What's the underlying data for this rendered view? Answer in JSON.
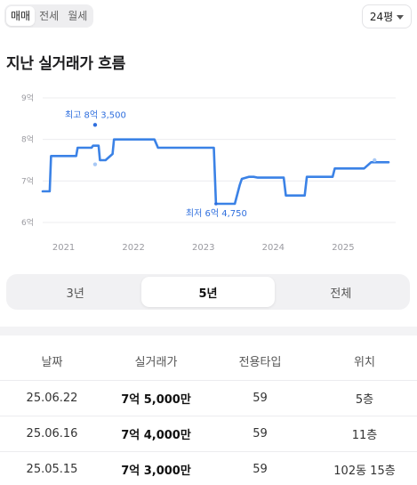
{
  "deal_tabs": [
    "매매",
    "전세",
    "월세"
  ],
  "size_select": {
    "value": "24평"
  },
  "section_title": "지난 실거래가 흐름",
  "chart_data": {
    "type": "line",
    "x_ticks": [
      "2021",
      "2022",
      "2023",
      "2024",
      "2025"
    ],
    "y_ticks": [
      "9억",
      "8억",
      "7억",
      "6억"
    ],
    "ylim": [
      6,
      9
    ],
    "xlim": [
      2020.7,
      2025.65
    ],
    "grid": true,
    "series": [
      {
        "x": [
          2020.7,
          2020.8,
          2020.82,
          2021.0,
          2021.18,
          2021.2,
          2021.4,
          2021.42,
          2021.5,
          2021.52,
          2021.58,
          2021.6,
          2021.7,
          2021.72,
          2021.82,
          2022.3,
          2022.35,
          2023.15,
          2023.18,
          2023.35,
          2023.45,
          2023.52,
          2023.55,
          2023.65,
          2023.72,
          2023.78,
          2024.15,
          2024.18,
          2024.45,
          2024.48,
          2024.85,
          2024.88,
          2025.3,
          2025.4,
          2025.65
        ],
        "y": [
          6.75,
          6.75,
          7.6,
          7.6,
          7.6,
          7.8,
          7.8,
          7.85,
          7.85,
          7.5,
          7.5,
          7.5,
          7.65,
          8.0,
          8.0,
          8.0,
          7.8,
          7.8,
          6.45,
          6.45,
          6.45,
          6.9,
          7.05,
          7.1,
          7.1,
          7.08,
          7.08,
          6.65,
          6.65,
          7.1,
          7.1,
          7.3,
          7.3,
          7.45,
          7.45
        ]
      }
    ],
    "points": [
      {
        "x": 2021.45,
        "y": 8.35,
        "type": "max"
      },
      {
        "x": 2021.45,
        "y": 7.4,
        "type": "faint"
      },
      {
        "x": 2025.45,
        "y": 7.5,
        "type": "faint"
      },
      {
        "x": 2023.18,
        "y": 6.45,
        "type": "min"
      }
    ],
    "annotations": {
      "max": "최고 8억 3,500",
      "min": "최저 6억 4,750"
    }
  },
  "periods": [
    "3년",
    "5년",
    "전체"
  ],
  "table": {
    "headers": [
      "날짜",
      "실거래가",
      "전용타입",
      "위치"
    ],
    "rows": [
      [
        "25.06.22",
        "7억 5,000만",
        "59",
        "5층"
      ],
      [
        "25.06.16",
        "7억 4,000만",
        "59",
        "11층"
      ],
      [
        "25.05.15",
        "7억 3,000만",
        "59",
        "102동 15층"
      ]
    ]
  },
  "colors": {
    "line": "#3b82e6",
    "accent": "#2f6fde",
    "faint": "#a9c9f5",
    "grid": "#ececef"
  }
}
